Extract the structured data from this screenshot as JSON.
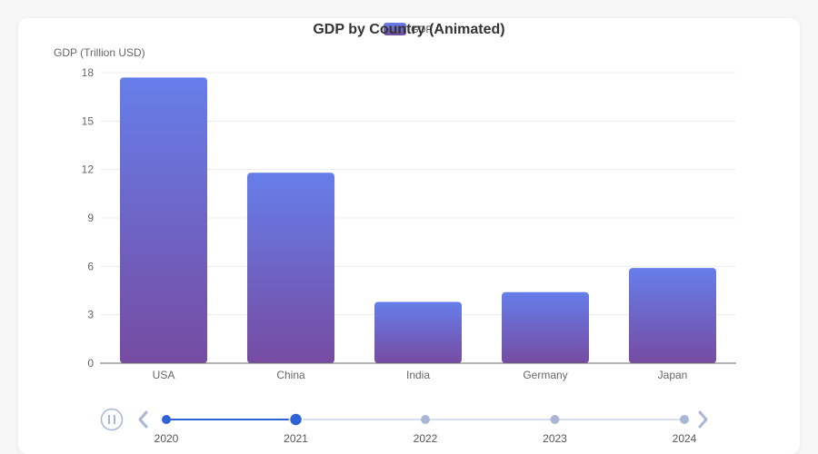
{
  "chart_data": {
    "type": "bar",
    "title": "GDP by Country (Animated)",
    "ylabel": "GDP (Trillion USD)",
    "xlabel": "",
    "categories": [
      "USA",
      "China",
      "India",
      "Germany",
      "Japan"
    ],
    "series": [
      {
        "name": "GDP",
        "values": [
          17.7,
          11.8,
          3.8,
          4.4,
          5.9
        ]
      }
    ],
    "ylim": [
      0,
      18
    ],
    "yticks": [
      0,
      3,
      6,
      9,
      12,
      15,
      18
    ],
    "grid": true,
    "legend": "top-center",
    "colors": {
      "bar_top": "#667eea",
      "bar_bottom": "#764ba2"
    }
  },
  "timeline": {
    "years": [
      "2020",
      "2021",
      "2022",
      "2023",
      "2024"
    ],
    "current_index": 1,
    "controls": {
      "play_icon": "pause-icon",
      "prev_icon": "chevron-left-icon",
      "next_icon": "chevron-right-icon"
    },
    "colors": {
      "active": "#2f62d6",
      "inactive": "#a9b6d6",
      "track": "#d6dff0"
    }
  }
}
